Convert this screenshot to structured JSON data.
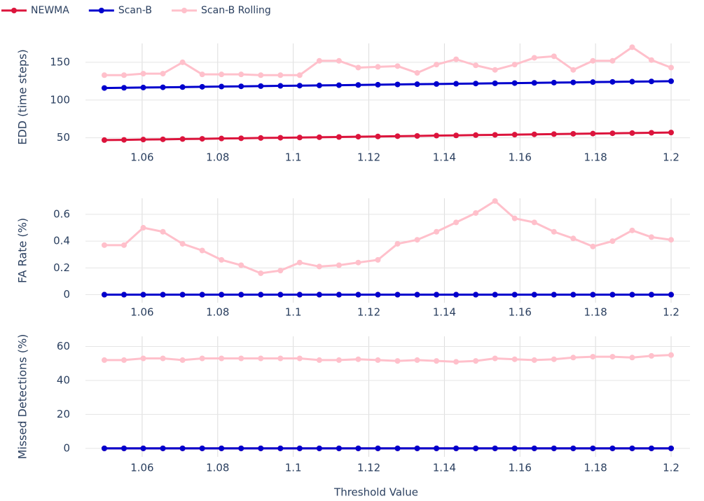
{
  "chart_data": {
    "type": "line",
    "xlabel": "Threshold Value",
    "x": [
      1.05,
      1.0552,
      1.0603,
      1.0655,
      1.0707,
      1.0759,
      1.081,
      1.0862,
      1.0914,
      1.0966,
      1.1017,
      1.1069,
      1.1121,
      1.1172,
      1.1224,
      1.1276,
      1.1328,
      1.1379,
      1.1431,
      1.1483,
      1.1534,
      1.1586,
      1.1638,
      1.169,
      1.1741,
      1.1793,
      1.1845,
      1.1897,
      1.1948,
      1.2
    ],
    "xlim": [
      1.045,
      1.205
    ],
    "xticks": [
      1.06,
      1.08,
      1.1,
      1.12,
      1.14,
      1.16,
      1.18,
      1.2
    ],
    "grid": true,
    "legend": "top-left",
    "series": [
      {
        "name": "NEWMA",
        "color": "#dc143c"
      },
      {
        "name": "Scan-B",
        "color": "#0000cd"
      },
      {
        "name": "Scan-B Rolling",
        "color": "#ffc0cb"
      }
    ],
    "panels": [
      {
        "ylabel": "EDD (time steps)",
        "ylim": [
          33,
          175
        ],
        "yticks": [
          50,
          100,
          150
        ],
        "values": [
          [
            47,
            47.3,
            47.7,
            48,
            48.4,
            48.7,
            49.1,
            49.4,
            49.8,
            50.1,
            50.4,
            50.8,
            51.1,
            51.5,
            51.8,
            52.2,
            52.5,
            52.9,
            53.2,
            53.6,
            53.9,
            54.2,
            54.6,
            54.9,
            55.3,
            55.6,
            56,
            56.3,
            56.7,
            57
          ],
          [
            116,
            116.3,
            116.6,
            116.9,
            117.2,
            117.6,
            117.9,
            118.2,
            118.5,
            118.8,
            119.1,
            119.4,
            119.7,
            120,
            120.3,
            120.7,
            121,
            121.3,
            121.6,
            121.9,
            122.2,
            122.5,
            122.8,
            123.1,
            123.4,
            123.8,
            124.1,
            124.4,
            124.7,
            125
          ],
          [
            133,
            133,
            135,
            135,
            150,
            134,
            134,
            134,
            133,
            133,
            133,
            152,
            152,
            143,
            144,
            145,
            136,
            147,
            154,
            146,
            140,
            147,
            156,
            158,
            140,
            152,
            152,
            170,
            153,
            143
          ]
        ]
      },
      {
        "ylabel": "FA Rate (%)",
        "ylim": [
          -0.06,
          0.72
        ],
        "yticks": [
          0,
          0.2,
          0.4,
          0.6
        ],
        "values": [
          [
            0,
            0,
            0,
            0,
            0,
            0,
            0,
            0,
            0,
            0,
            0,
            0,
            0,
            0,
            0,
            0,
            0,
            0,
            0,
            0,
            0,
            0,
            0,
            0,
            0,
            0,
            0,
            0,
            0,
            0
          ],
          [
            0,
            0,
            0,
            0,
            0,
            0,
            0,
            0,
            0,
            0,
            0,
            0,
            0,
            0,
            0,
            0,
            0,
            0,
            0,
            0,
            0,
            0,
            0,
            0,
            0,
            0,
            0,
            0,
            0,
            0
          ],
          [
            0.37,
            0.37,
            0.5,
            0.47,
            0.38,
            0.33,
            0.26,
            0.22,
            0.16,
            0.18,
            0.24,
            0.21,
            0.22,
            0.24,
            0.26,
            0.38,
            0.41,
            0.47,
            0.54,
            0.61,
            0.7,
            0.57,
            0.54,
            0.47,
            0.42,
            0.36,
            0.4,
            0.48,
            0.43,
            0.41
          ]
        ]
      },
      {
        "ylabel": "Missed Detections (%)",
        "ylim": [
          -5,
          66
        ],
        "yticks": [
          0,
          20,
          40,
          60
        ],
        "values": [
          [
            0,
            0,
            0,
            0,
            0,
            0,
            0,
            0,
            0,
            0,
            0,
            0,
            0,
            0,
            0,
            0,
            0,
            0,
            0,
            0,
            0,
            0,
            0,
            0,
            0,
            0,
            0,
            0,
            0,
            0
          ],
          [
            0,
            0,
            0,
            0,
            0,
            0,
            0,
            0,
            0,
            0,
            0,
            0,
            0,
            0,
            0,
            0,
            0,
            0,
            0,
            0,
            0,
            0,
            0,
            0,
            0,
            0,
            0,
            0,
            0,
            0
          ],
          [
            52,
            52,
            53,
            53,
            52,
            53,
            53,
            53,
            53,
            53,
            53,
            52,
            52,
            52.5,
            52,
            51.5,
            52,
            51.5,
            51,
            51.5,
            53,
            52.5,
            52,
            52.5,
            53.5,
            54,
            54,
            53.5,
            54.5,
            55
          ]
        ]
      }
    ]
  }
}
